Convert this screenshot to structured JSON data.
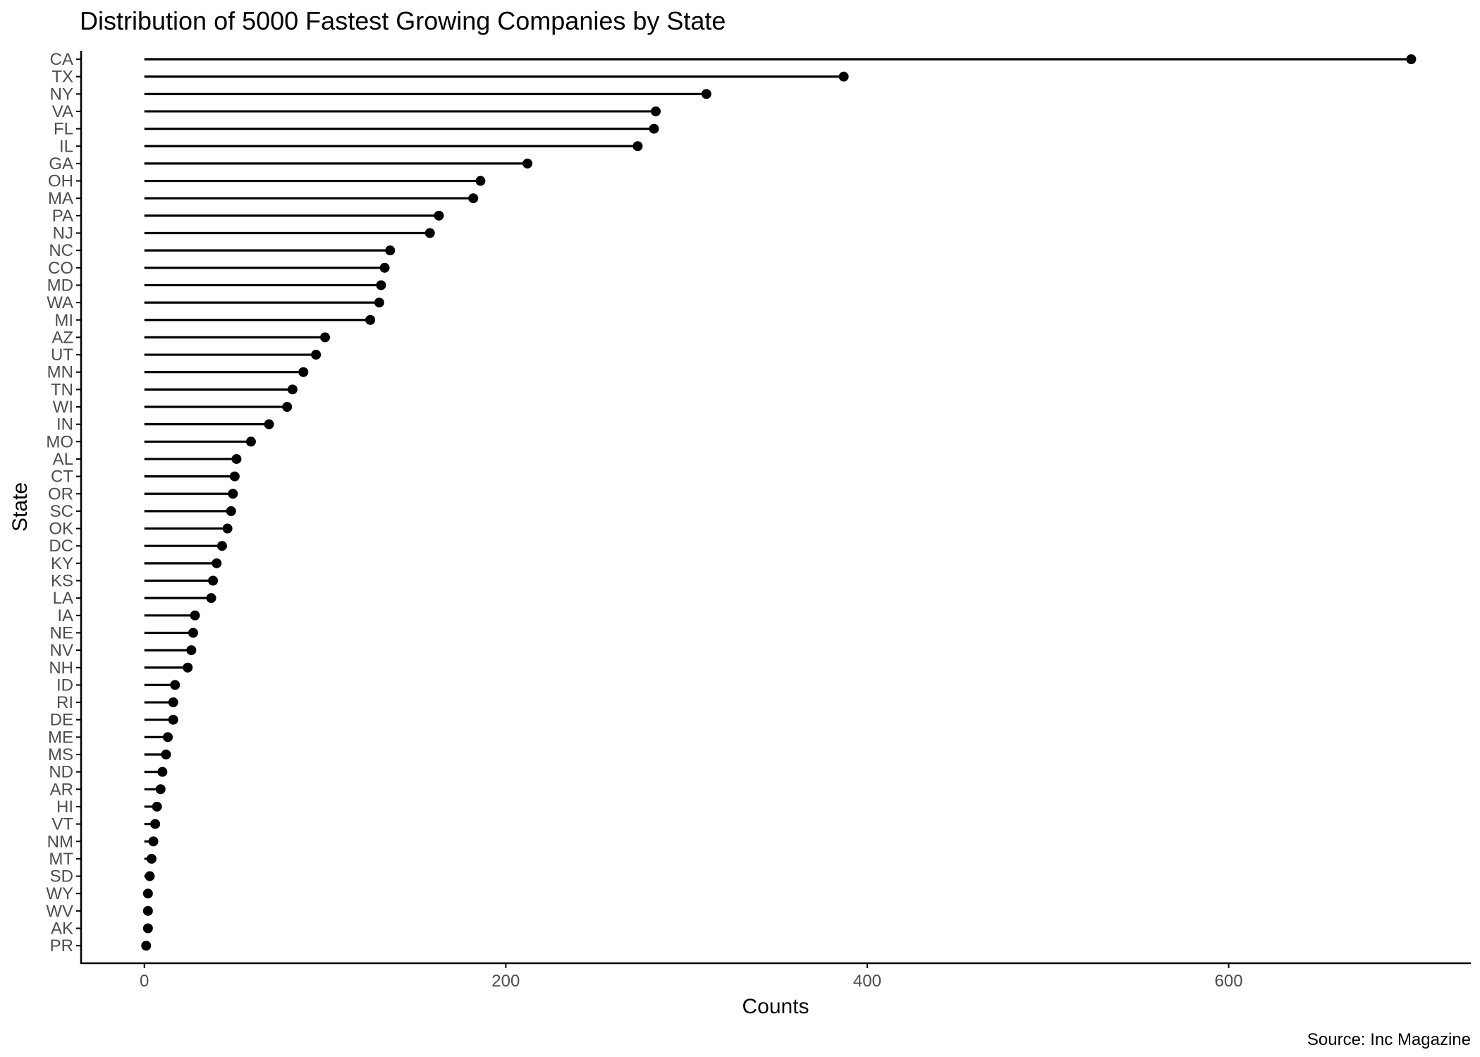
{
  "chart_data": {
    "type": "lollipop",
    "title": "Distribution of 5000 Fastest Growing Companies by State",
    "xlabel": "Counts",
    "ylabel": "State",
    "caption": "Source: Inc Magazine",
    "xlim": [
      -35,
      734
    ],
    "x_ticks": [
      0,
      200,
      400,
      600
    ],
    "grid": false,
    "colors": {
      "stem": "#000000",
      "point": "#000000",
      "axis": "#000000",
      "tick_text": "#4d4d4d"
    },
    "categories": [
      "CA",
      "TX",
      "NY",
      "VA",
      "FL",
      "IL",
      "GA",
      "OH",
      "MA",
      "PA",
      "NJ",
      "NC",
      "CO",
      "MD",
      "WA",
      "MI",
      "AZ",
      "UT",
      "MN",
      "TN",
      "WI",
      "IN",
      "MO",
      "AL",
      "CT",
      "OR",
      "SC",
      "OK",
      "DC",
      "KY",
      "KS",
      "LA",
      "IA",
      "NE",
      "NV",
      "NH",
      "ID",
      "RI",
      "DE",
      "ME",
      "MS",
      "ND",
      "AR",
      "HI",
      "VT",
      "NM",
      "MT",
      "SD",
      "WY",
      "WV",
      "AK",
      "PR"
    ],
    "values": [
      701,
      387,
      311,
      283,
      282,
      273,
      212,
      186,
      182,
      163,
      158,
      136,
      133,
      131,
      130,
      125,
      100,
      95,
      88,
      82,
      79,
      69,
      59,
      51,
      50,
      49,
      48,
      46,
      43,
      40,
      38,
      37,
      28,
      27,
      26,
      24,
      17,
      16,
      16,
      13,
      12,
      10,
      9,
      7,
      6,
      5,
      4,
      3,
      2,
      2,
      2,
      1
    ]
  }
}
